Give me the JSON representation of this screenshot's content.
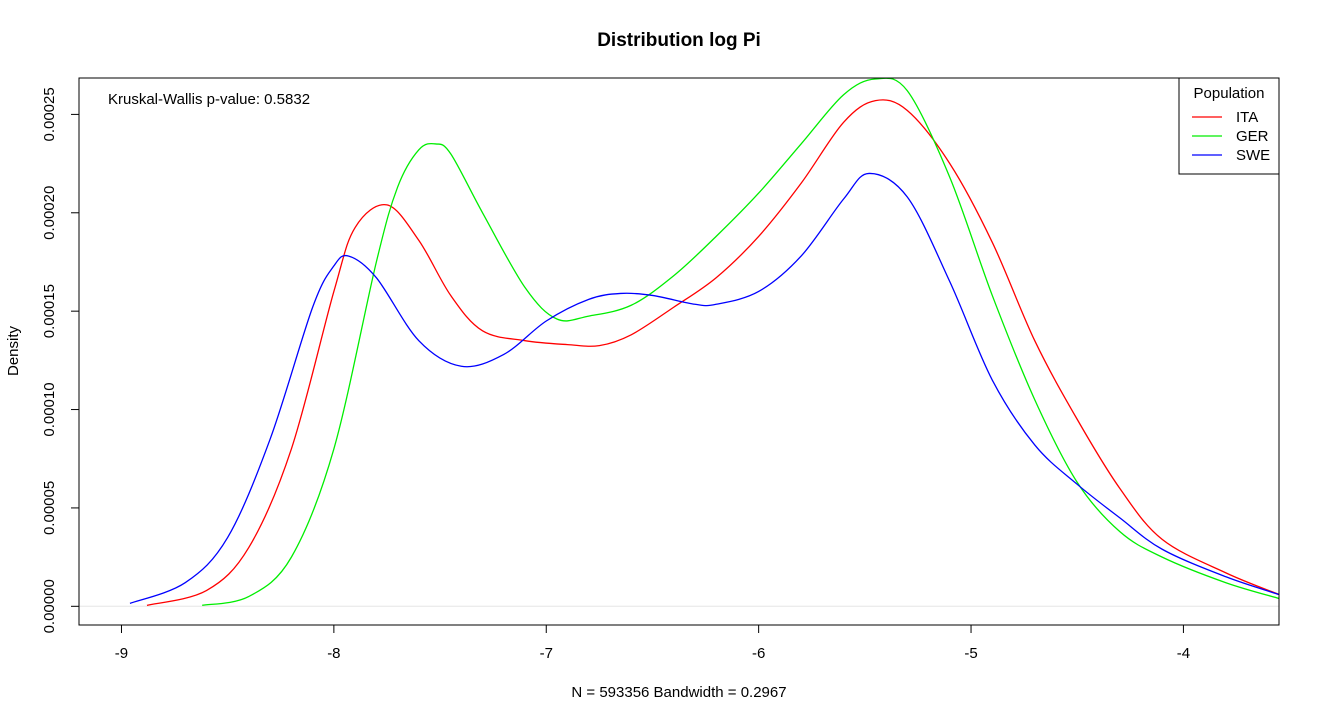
{
  "chart_data": {
    "type": "line",
    "title": "Distribution log Pi",
    "xlabel": "N = 593356   Bandwidth = 0.2967",
    "ylabel": "Density",
    "xlim": [
      -9.2,
      -3.55
    ],
    "ylim": [
      -9.5e-06,
      0.0002685
    ],
    "x_ticks": [
      -9,
      -8,
      -7,
      -6,
      -5,
      -4
    ],
    "x_tick_labels": [
      "-9",
      "-8",
      "-7",
      "-6",
      "-5",
      "-4"
    ],
    "y_ticks": [
      0,
      5e-05,
      0.0001,
      0.00015,
      0.0002,
      0.00025
    ],
    "y_tick_labels": [
      "0.00000",
      "0.00005",
      "0.00010",
      "0.00015",
      "0.00020",
      "0.00025"
    ],
    "annotation": "Kruskal-Wallis p-value: 0.5832",
    "legend": {
      "title": "Population",
      "position": "top-right"
    },
    "baseline": 0,
    "series": [
      {
        "name": "ITA",
        "color": "#ff0000",
        "x": [
          -8.88,
          -8.6,
          -8.4,
          -8.2,
          -8.0,
          -7.9,
          -7.75,
          -7.6,
          -7.45,
          -7.3,
          -7.1,
          -6.9,
          -6.75,
          -6.6,
          -6.4,
          -6.2,
          -6.0,
          -5.8,
          -5.6,
          -5.45,
          -5.3,
          -5.1,
          -4.9,
          -4.7,
          -4.5,
          -4.3,
          -4.1,
          -3.8,
          -3.55
        ],
        "y": [
          5e-07,
          8e-06,
          3e-05,
          8e-05,
          0.00016,
          0.0001925,
          0.000204,
          0.000186,
          0.000158,
          0.00014,
          0.000135,
          0.000133,
          0.0001325,
          0.000138,
          0.000152,
          0.000167,
          0.000188,
          0.000215,
          0.000246,
          0.000257,
          0.000252,
          0.000225,
          0.000185,
          0.000135,
          9.5e-05,
          6e-05,
          3.4e-05,
          1.7e-05,
          6e-06
        ]
      },
      {
        "name": "GER",
        "color": "#00ee00",
        "x": [
          -8.62,
          -8.4,
          -8.2,
          -8.0,
          -7.8,
          -7.7,
          -7.6,
          -7.52,
          -7.45,
          -7.3,
          -7.1,
          -6.95,
          -6.8,
          -6.6,
          -6.4,
          -6.2,
          -6.0,
          -5.8,
          -5.6,
          -5.45,
          -5.3,
          -5.1,
          -4.9,
          -4.7,
          -4.5,
          -4.3,
          -4.1,
          -3.8,
          -3.55
        ],
        "y": [
          5e-07,
          5e-06,
          2.5e-05,
          8e-05,
          0.000175,
          0.000213,
          0.000232,
          0.000235,
          0.00023,
          0.0002,
          0.000162,
          0.000146,
          0.0001475,
          0.000153,
          0.000168,
          0.000188,
          0.00021,
          0.000235,
          0.00026,
          0.000268,
          0.000262,
          0.000218,
          0.000158,
          0.000105,
          6.3e-05,
          3.8e-05,
          2.5e-05,
          1.2e-05,
          4e-06
        ]
      },
      {
        "name": "SWE",
        "color": "#0000ff",
        "x": [
          -8.96,
          -8.7,
          -8.5,
          -8.3,
          -8.1,
          -8.0,
          -7.93,
          -7.8,
          -7.6,
          -7.4,
          -7.2,
          -7.0,
          -6.8,
          -6.65,
          -6.5,
          -6.3,
          -6.2,
          -6.0,
          -5.8,
          -5.6,
          -5.48,
          -5.3,
          -5.1,
          -4.9,
          -4.7,
          -4.5,
          -4.3,
          -4.1,
          -3.8,
          -3.55
        ],
        "y": [
          1.5e-06,
          1.2e-05,
          3.5e-05,
          8.5e-05,
          0.000152,
          0.000173,
          0.000178,
          0.000167,
          0.000135,
          0.000122,
          0.000128,
          0.000145,
          0.000156,
          0.000159,
          0.000158,
          0.0001535,
          0.0001535,
          0.00016,
          0.000178,
          0.000207,
          0.00022,
          0.000208,
          0.000165,
          0.000115,
          8.2e-05,
          6.2e-05,
          4.5e-05,
          2.9e-05,
          1.5e-05,
          6e-06
        ]
      }
    ]
  }
}
